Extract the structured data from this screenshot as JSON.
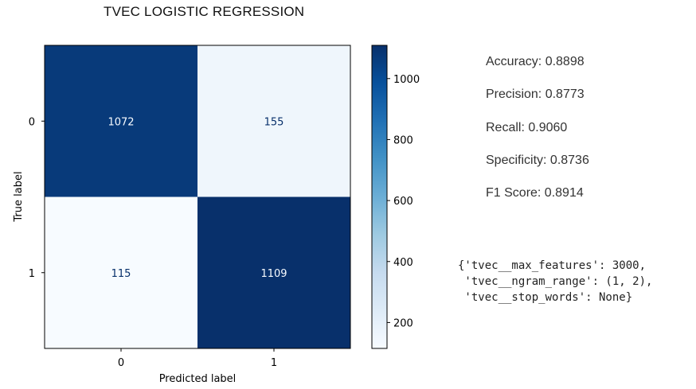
{
  "chart_data": {
    "type": "heatmap",
    "title": "TVEC LOGISTIC REGRESSION",
    "xlabel": "Predicted label",
    "ylabel": "True label",
    "x_ticks": [
      "0",
      "1"
    ],
    "y_ticks": [
      "0",
      "1"
    ],
    "matrix": [
      [
        1072,
        155
      ],
      [
        115,
        1109
      ]
    ],
    "colormap": "Blues",
    "color_range": [
      115,
      1109
    ],
    "colorbar_ticks": [
      200,
      400,
      600,
      800,
      1000
    ]
  },
  "metrics": [
    {
      "label": "Accuracy: 0.8898"
    },
    {
      "label": "Precision: 0.8773"
    },
    {
      "label": "Recall: 0.9060"
    },
    {
      "label": "Specificity: 0.8736"
    },
    {
      "label": "F1 Score: 0.8914"
    }
  ],
  "params": {
    "line1": "{'tvec__max_features': 3000,",
    "line2": " 'tvec__ngram_range': (1, 2),",
    "line3": " 'tvec__stop_words': None}"
  }
}
